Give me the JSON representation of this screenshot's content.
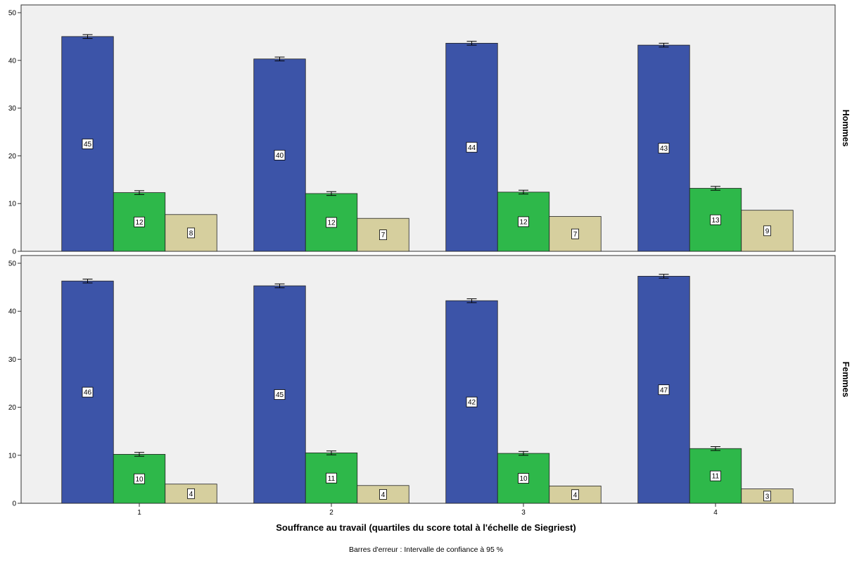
{
  "chart_data": {
    "type": "bar",
    "xlabel": "Souffrance au travail (quartiles du score total à l'échelle de Siegriest)",
    "note": "Barres d'erreur : Intervalle de confiance à 95 %",
    "categories": [
      "1",
      "2",
      "3",
      "4"
    ],
    "ylim": [
      0,
      50
    ],
    "yticks": [
      0,
      10,
      20,
      30,
      40,
      50
    ],
    "grid": false,
    "legend": "none",
    "colors": {
      "series_1": "#3c54a8",
      "series_2": "#2eb84a",
      "series_3": "#d6cf9e",
      "panel_bg": "#f0f0f0"
    },
    "panels": [
      {
        "label": "Hommes",
        "series": [
          {
            "values": [
              45.0,
              40.3,
              43.6,
              43.2
            ],
            "labels": [
              "45",
              "40",
              "44",
              "43"
            ],
            "error": [
              0.4,
              0.4,
              0.4,
              0.4
            ]
          },
          {
            "values": [
              12.3,
              12.1,
              12.4,
              13.2
            ],
            "labels": [
              "12",
              "12",
              "12",
              "13"
            ],
            "error": [
              0.4,
              0.4,
              0.4,
              0.4
            ]
          },
          {
            "values": [
              7.7,
              6.9,
              7.3,
              8.6
            ],
            "labels": [
              "8",
              "7",
              "7",
              "9"
            ]
          }
        ]
      },
      {
        "label": "Femmes",
        "series": [
          {
            "values": [
              46.3,
              45.3,
              42.2,
              47.3
            ],
            "labels": [
              "46",
              "45",
              "42",
              "47"
            ],
            "error": [
              0.4,
              0.4,
              0.4,
              0.4
            ]
          },
          {
            "values": [
              10.2,
              10.5,
              10.4,
              11.4
            ],
            "labels": [
              "10",
              "11",
              "10",
              "11"
            ],
            "error": [
              0.4,
              0.4,
              0.4,
              0.4
            ]
          },
          {
            "values": [
              4.0,
              3.7,
              3.6,
              3.0
            ],
            "labels": [
              "4",
              "4",
              "4",
              "3"
            ]
          }
        ]
      }
    ]
  }
}
